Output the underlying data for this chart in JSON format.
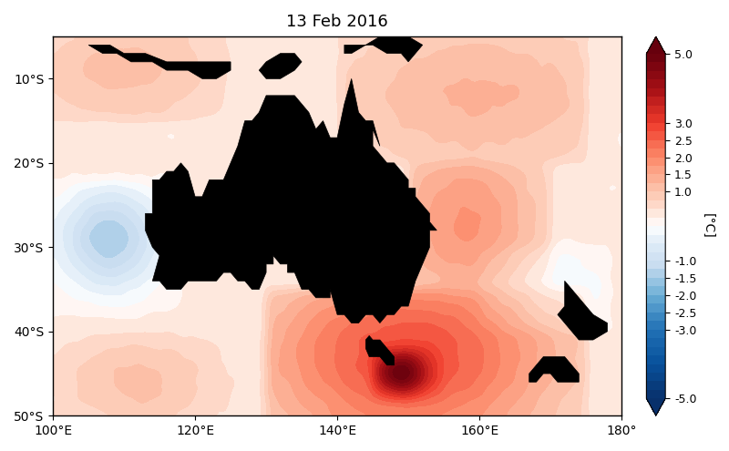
{
  "title": "13 Feb 2016",
  "lon_min": 100,
  "lon_max": 180,
  "lat_min": -50,
  "lat_max": -5,
  "xticks": [
    100,
    120,
    140,
    160,
    180
  ],
  "yticks": [
    -10,
    -20,
    -30,
    -40,
    -50
  ],
  "xtick_labels": [
    "100°E",
    "120°E",
    "140°E",
    "160°E",
    "180°"
  ],
  "ytick_labels": [
    "10°S",
    "20°S",
    "30°S",
    "40°S",
    "50°S"
  ],
  "cbar_ticks": [
    5.0,
    3.0,
    2.5,
    2.0,
    1.5,
    1.0,
    -1.0,
    -1.5,
    -2.0,
    -2.5,
    -3.0,
    -5.0
  ],
  "cbar_label": "[°C]",
  "vmin": -5,
  "vmax": 5,
  "figsize": [
    8.0,
    4.95
  ],
  "dpi": 100
}
